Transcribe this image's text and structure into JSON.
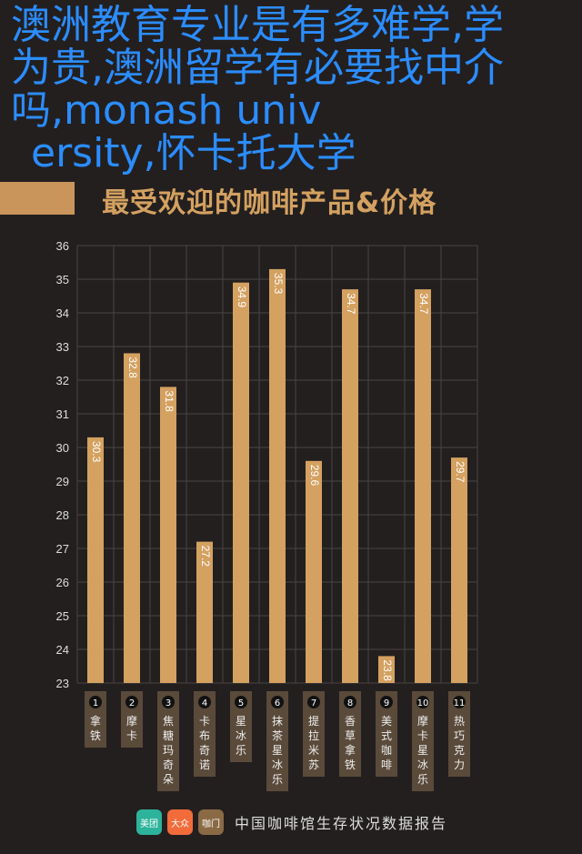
{
  "chart_data": {
    "type": "bar",
    "title": "最受欢迎的咖啡产品&价格",
    "categories": [
      "拿铁",
      "摩卡",
      "焦糖玛奇朵",
      "卡布奇诺",
      "星冰乐",
      "抹茶星冰乐",
      "提拉米苏",
      "香草拿铁",
      "美式咖啡",
      "摩卡星冰乐",
      "热巧克力"
    ],
    "numbers": [
      "1",
      "2",
      "3",
      "4",
      "5",
      "6",
      "7",
      "8",
      "9",
      "10",
      "11"
    ],
    "values": [
      30.3,
      32.8,
      31.8,
      27.2,
      34.9,
      35.3,
      29.6,
      34.7,
      23.8,
      34.7,
      29.7
    ],
    "ylim": [
      23,
      36
    ],
    "yticks": [
      23,
      24,
      25,
      26,
      27,
      28,
      29,
      30,
      31,
      32,
      33,
      34,
      35,
      36
    ],
    "grid": true,
    "bar_color": "#d4a160"
  },
  "footer": {
    "logos": [
      "美团",
      "大众点评",
      "咖门"
    ],
    "text": "中国咖啡馆生存状况数据报告"
  },
  "overlay": {
    "lines": [
      "澳洲教育专业是有多难学,学",
      "为贵,澳洲留学有必要找中介",
      "吗,monash univ",
      "ersity,怀卡托大学"
    ],
    "color": "#2b8dff"
  }
}
